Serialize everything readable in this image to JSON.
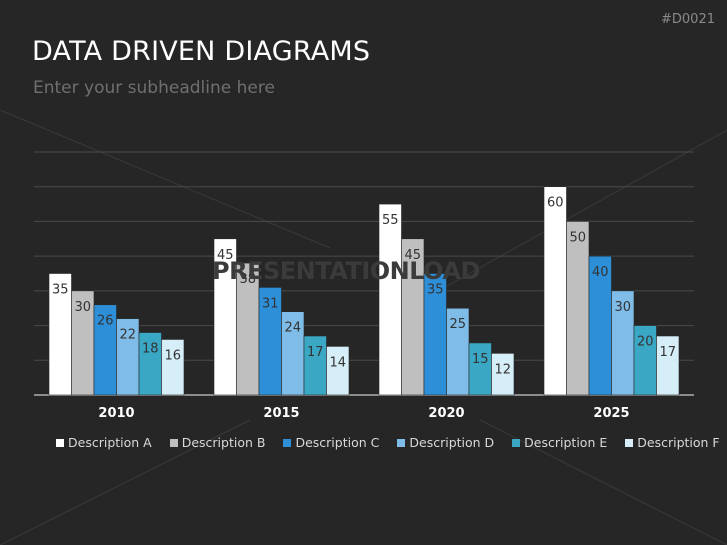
{
  "header": {
    "title": "DATA DRIVEN DIAGRAMS",
    "subtitle": "Enter your subheadline here",
    "code": "#D0021"
  },
  "watermark": "PRESENTATIONLOAD",
  "chart_data": {
    "type": "bar",
    "categories": [
      "2010",
      "2015",
      "2020",
      "2025"
    ],
    "series": [
      {
        "name": "Description A",
        "color": "#ffffff",
        "values": [
          35,
          45,
          55,
          60
        ]
      },
      {
        "name": "Description B",
        "color": "#bfbfbf",
        "values": [
          30,
          38,
          45,
          50
        ]
      },
      {
        "name": "Description C",
        "color": "#2e8fd9",
        "values": [
          26,
          31,
          35,
          40
        ]
      },
      {
        "name": "Description D",
        "color": "#7fbde8",
        "values": [
          22,
          24,
          25,
          30
        ]
      },
      {
        "name": "Description E",
        "color": "#3aa7c4",
        "values": [
          18,
          17,
          15,
          20
        ]
      },
      {
        "name": "Description F",
        "color": "#d6eef8",
        "values": [
          16,
          14,
          12,
          17
        ]
      }
    ],
    "ylim": [
      0,
      70
    ],
    "grid": true,
    "legend_position": "bottom",
    "title": "",
    "xlabel": "",
    "ylabel": ""
  }
}
